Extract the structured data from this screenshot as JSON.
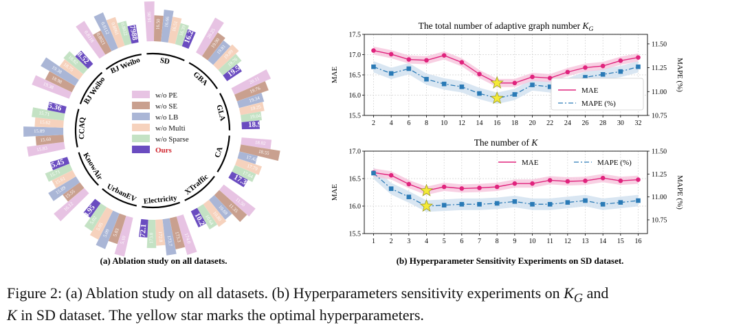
{
  "figure": {
    "subcaption_a": "(a) Ablation study on all datasets.",
    "subcaption_b": "(b) Hyperparameter Sensitivity Experiments on SD dataset.",
    "caption_part1": "Figure 2: (a) Ablation study on all datasets. (b) Hyperparameters sensitivity experiments on ",
    "caption_kg": "K",
    "caption_kg_sub": "G",
    "caption_part2": " and",
    "caption_line2_k": "K",
    "caption_line2": " in SD dataset. The yellow star marks the optimal hyperparameters."
  },
  "colors": {
    "w/o PE": "#e7c3e3",
    "w/o SE": "#c9a08f",
    "w/o LB": "#aab6d6",
    "w/o Multi": "#f6d2bd",
    "w/o Sparse": "#c4e2c4",
    "Ours": "#6a4cc0",
    "mae_line": "#e0237d",
    "mae_band": "#f6c4dc",
    "mape_line": "#2a7ab6",
    "mape_band": "#cfe0ef",
    "star": "#f4ea37"
  },
  "chart_data": [
    {
      "type": "radial-bar",
      "title": "",
      "legend": [
        "w/o PE",
        "w/o SE",
        "w/o LB",
        "w/o Multi",
        "w/o Sparse",
        "Ours"
      ],
      "legend_highlight": "Ours",
      "datasets": [
        {
          "name": "SD",
          "labels": [
            "16.86",
            "16.50",
            "16.66",
            "16.51",
            "16.39",
            "16.29"
          ]
        },
        {
          "name": "GBA",
          "labels": [
            "20.25",
            "19.90",
            "19.81",
            "19.89",
            "19.76",
            "19.58"
          ]
        },
        {
          "name": "GLA",
          "labels": [
            "20.11",
            "19.76",
            "19.34",
            "19.25",
            "19.04",
            "18.9"
          ]
        },
        {
          "name": "CA",
          "labels": [
            "18.02",
            "18.55",
            "17.42",
            "17.79",
            "17.64",
            "17.37"
          ]
        },
        {
          "name": "XTraffic",
          "labels": [
            "11.50",
            "11.35",
            "10.69",
            "10.80",
            "10.64",
            "10.24"
          ]
        },
        {
          "name": "Electricity",
          "labels": [
            "174.0",
            "173.3",
            "173.7",
            "172.8",
            "173.0",
            "172.1"
          ]
        },
        {
          "name": "UrbanEV",
          "labels": [
            "5.10",
            "5.03",
            "5.09",
            "5.05",
            "5.02",
            "4.95"
          ]
        },
        {
          "name": "KnowAir",
          "labels": [
            "16.12",
            "15.55",
            "15.89",
            "15.61",
            "15.71",
            "15.45"
          ]
        },
        {
          "name": "CCAQ",
          "labels": [
            "15.83",
            "15.60",
            "15.89",
            "15.62",
            "15.71",
            "15.36"
          ]
        },
        {
          "name": "BJ Weibo",
          "labels": [
            "19.38",
            "18.98",
            "19.38",
            "18.75",
            "18.82",
            "18.52"
          ]
        },
        {
          "name": "BJ Weibo (MAPE)",
          "labels": [
            "0.8118",
            "0.8021",
            "0.8112",
            "0.8061",
            "0.8022",
            "0.7988"
          ]
        }
      ]
    },
    {
      "type": "line",
      "title_text": "The total number of adaptive graph number ",
      "title_math": "K",
      "title_sub": "G",
      "ylabel": "MAE",
      "ylabel_right": "MAPE (%)",
      "x": [
        2,
        4,
        6,
        8,
        10,
        12,
        14,
        16,
        18,
        20,
        22,
        24,
        26,
        28,
        30,
        32
      ],
      "ylim": [
        15.5,
        17.5
      ],
      "yticks": [
        "15.5",
        "16.0",
        "16.5",
        "17.0",
        "17.5"
      ],
      "ylim_right": [
        10.75,
        11.6
      ],
      "yticks_right": [
        "10.75",
        "11.00",
        "11.25",
        "11.50"
      ],
      "series": [
        {
          "name": "MAE",
          "axis": "left",
          "values": [
            17.1,
            17.01,
            16.88,
            16.86,
            16.98,
            16.81,
            16.52,
            16.3,
            16.3,
            16.45,
            16.42,
            16.57,
            16.68,
            16.72,
            16.85,
            16.93
          ]
        },
        {
          "name": "MAPE (%)",
          "axis": "right",
          "values": [
            11.26,
            11.19,
            11.24,
            11.13,
            11.08,
            11.05,
            10.98,
            10.93,
            10.97,
            11.07,
            11.05,
            11.08,
            11.15,
            11.18,
            11.21,
            11.26
          ]
        }
      ],
      "optimal_x": 16,
      "legend_position": "lower-right",
      "grid": true
    },
    {
      "type": "line",
      "title_text": "The number of ",
      "title_math": "K",
      "ylabel": "MAE",
      "ylabel_right": "MAPE (%)",
      "x": [
        1,
        2,
        3,
        4,
        5,
        6,
        7,
        8,
        9,
        10,
        11,
        12,
        13,
        14,
        15,
        16
      ],
      "ylim": [
        15.5,
        17.0
      ],
      "yticks": [
        "15.5",
        "16.0",
        "16.5",
        "17.0"
      ],
      "ylim_right": [
        10.6,
        11.5
      ],
      "yticks_right": [
        "10.75",
        "11.00",
        "11.25",
        "11.50"
      ],
      "series": [
        {
          "name": "MAE",
          "axis": "left",
          "values": [
            16.61,
            16.56,
            16.4,
            16.28,
            16.35,
            16.32,
            16.33,
            16.35,
            16.41,
            16.41,
            16.47,
            16.45,
            16.46,
            16.51,
            16.46,
            16.48
          ]
        },
        {
          "name": "MAPE (%)",
          "axis": "right",
          "values": [
            11.26,
            11.09,
            11.0,
            10.9,
            10.91,
            10.92,
            10.92,
            10.93,
            10.95,
            10.92,
            10.92,
            10.94,
            10.96,
            10.92,
            10.94,
            10.96
          ]
        }
      ],
      "optimal_x": 4,
      "legend_position": "top",
      "grid": true
    }
  ]
}
